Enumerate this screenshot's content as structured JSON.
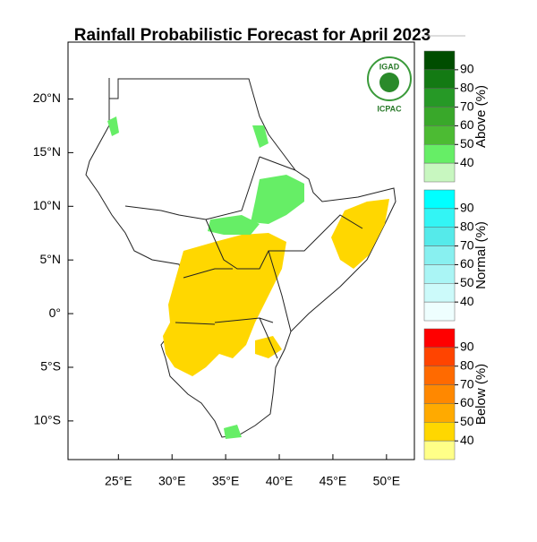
{
  "title": "Rainfall Probabilistic Forecast for April 2023",
  "logo": {
    "top": "IGAD",
    "bottom": "ICPAC"
  },
  "map": {
    "xlim": [
      20.3,
      52.6
    ],
    "ylim": [
      -13.6,
      25.3
    ],
    "xticks": [
      {
        "value": 25,
        "label": "25°E"
      },
      {
        "value": 30,
        "label": "30°E"
      },
      {
        "value": 35,
        "label": "35°E"
      },
      {
        "value": 40,
        "label": "40°E"
      },
      {
        "value": 45,
        "label": "45°E"
      },
      {
        "value": 50,
        "label": "50°E"
      }
    ],
    "yticks": [
      {
        "value": 20,
        "label": "20°N"
      },
      {
        "value": 15,
        "label": "15°N"
      },
      {
        "value": 10,
        "label": "10°N"
      },
      {
        "value": 5,
        "label": "5°N"
      },
      {
        "value": 0,
        "label": "0°"
      },
      {
        "value": -5,
        "label": "5°S"
      },
      {
        "value": -10,
        "label": "10°S"
      }
    ]
  },
  "colorbars": [
    {
      "title": "Above (%)",
      "labels": [
        "90",
        "80",
        "70",
        "60",
        "50",
        "40"
      ],
      "colors": [
        "#004d00",
        "#137a13",
        "#269926",
        "#39a82a",
        "#4cbb33",
        "#66ee66",
        "#c8f7c0"
      ]
    },
    {
      "title": "Normal (%)",
      "labels": [
        "90",
        "80",
        "70",
        "60",
        "50",
        "40"
      ],
      "colors": [
        "#00ffff",
        "#33f5f5",
        "#55eaea",
        "#88f0f0",
        "#aaf5f5",
        "#ccfafa",
        "#eefefe"
      ]
    },
    {
      "title": "Below (%)",
      "labels": [
        "90",
        "80",
        "70",
        "60",
        "50",
        "40"
      ],
      "colors": [
        "#ff0000",
        "#ff4400",
        "#ff6a00",
        "#ff8800",
        "#ffaa00",
        "#ffd700",
        "#ffff88"
      ]
    }
  ]
}
